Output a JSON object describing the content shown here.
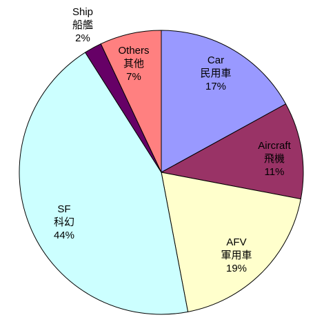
{
  "chart_data": {
    "type": "pie",
    "title": "",
    "slices": [
      {
        "label_en": "Car",
        "label_zh": "民用車",
        "value": 17,
        "value_label": "17%",
        "color": "#9999ff"
      },
      {
        "label_en": "Aircraft",
        "label_zh": "飛機",
        "value": 11,
        "value_label": "11%",
        "color": "#993366"
      },
      {
        "label_en": "AFV",
        "label_zh": "軍用車",
        "value": 19,
        "value_label": "19%",
        "color": "#ffffcc"
      },
      {
        "label_en": "SF",
        "label_zh": "科幻",
        "value": 44,
        "value_label": "44%",
        "color": "#ccffff"
      },
      {
        "label_en": "Ship",
        "label_zh": "船艦",
        "value": 2,
        "value_label": "2%",
        "color": "#660066"
      },
      {
        "label_en": "Others",
        "label_zh": "其他",
        "value": 7,
        "value_label": "7%",
        "color": "#ff8080"
      }
    ],
    "start_angle": "12 o'clock",
    "direction": "clockwise",
    "legend": "none",
    "border_color": "#000000"
  }
}
